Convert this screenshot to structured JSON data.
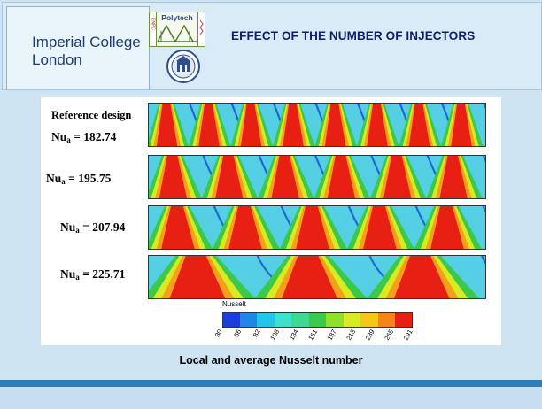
{
  "header": {
    "institution_line1": "Imperial College",
    "institution_line2": "London",
    "polytech_logo_text": "Polytech",
    "polytech_side_text": "ENPC",
    "title": "EFFECT OF THE NUMBER OF INJECTORS"
  },
  "figure": {
    "reference_label": "Reference design",
    "rows": [
      {
        "nu_symbol": "Nu",
        "nu_sub": "a",
        "nu_value": "= 182.74",
        "injectors": 8
      },
      {
        "nu_symbol": "Nu",
        "nu_sub": "a",
        "nu_value": "= 195.75",
        "injectors": 6
      },
      {
        "nu_symbol": "Nu",
        "nu_sub": "a",
        "nu_value": "= 207.94",
        "injectors": 5
      },
      {
        "nu_symbol": "Nu",
        "nu_sub": "a",
        "nu_value": "= 225.71",
        "injectors": 3
      }
    ],
    "colorbar": {
      "title": "Nusselt",
      "ticks": [
        "30",
        "56",
        "82",
        "108",
        "134",
        "161",
        "187",
        "213",
        "239",
        "265",
        "291"
      ],
      "colors": [
        "#1a3fd8",
        "#1f86e8",
        "#27c4ea",
        "#3fe0d0",
        "#40d890",
        "#3cc84a",
        "#8ee02a",
        "#d8ea20",
        "#f5c51a",
        "#f5841a",
        "#e82014"
      ]
    }
  },
  "caption": "Local and average Nusselt number"
}
